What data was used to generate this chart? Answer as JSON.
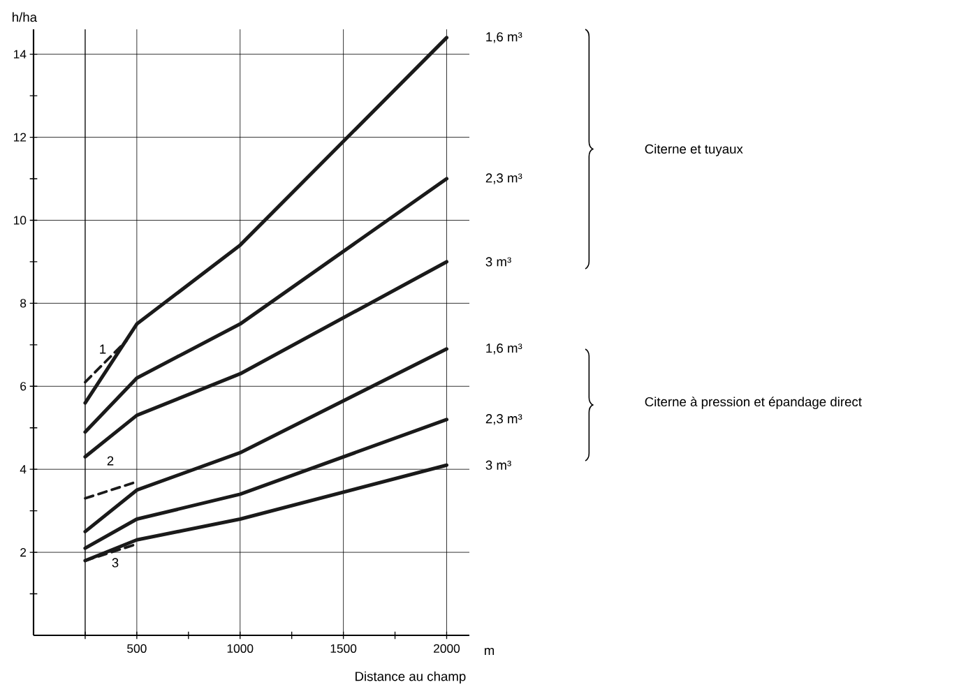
{
  "chart_data": {
    "type": "line",
    "xlabel": "Distance au champ",
    "ylabel": "h/ha",
    "xlim": [
      0,
      2110
    ],
    "ylim": [
      0,
      14.6
    ],
    "xticks": [
      {
        "value": 250,
        "label": null
      },
      500,
      {
        "value": 750,
        "label": null
      },
      1000,
      {
        "value": 1250,
        "label": null
      },
      1500,
      {
        "value": 1750,
        "label": null
      },
      2000
    ],
    "yticks": [
      {
        "value": 1,
        "label": null
      },
      2,
      {
        "value": 3,
        "label": null
      },
      4,
      {
        "value": 5,
        "label": null
      },
      6,
      {
        "value": 7,
        "label": null
      },
      8,
      {
        "value": 9,
        "label": null
      },
      10,
      {
        "value": 11,
        "label": null
      },
      12,
      {
        "value": 13,
        "label": null
      },
      14
    ],
    "grid": true,
    "ref_lines": [
      {
        "axis": "x",
        "value": 250
      }
    ],
    "series": [
      {
        "name": "1,6 m³",
        "color": "#1a1a1a",
        "x": [
          250,
          500,
          1000,
          2000
        ],
        "values": [
          5.6,
          7.5,
          9.4,
          14.4
        ]
      },
      {
        "name": "2,3 m³",
        "color": "#1a1a1a",
        "x": [
          250,
          500,
          1000,
          2000
        ],
        "values": [
          4.9,
          6.2,
          7.5,
          11.0
        ]
      },
      {
        "name": "3 m³",
        "color": "#1a1a1a",
        "x": [
          250,
          500,
          1000,
          2000
        ],
        "values": [
          4.3,
          5.3,
          6.3,
          9.0
        ]
      },
      {
        "name": "1,6 m³",
        "color": "#1a1a1a",
        "x": [
          250,
          500,
          1000,
          2000
        ],
        "values": [
          2.5,
          3.5,
          4.4,
          6.9
        ]
      },
      {
        "name": "2,3 m³",
        "color": "#1a1a1a",
        "x": [
          250,
          500,
          1000,
          2000
        ],
        "values": [
          2.1,
          2.8,
          3.4,
          5.2
        ]
      },
      {
        "name": "3 m³",
        "color": "#1a1a1a",
        "x": [
          250,
          500,
          1000,
          2000
        ],
        "values": [
          1.8,
          2.3,
          2.8,
          4.1
        ]
      },
      {
        "color": "#1a1a1a",
        "line_style": "dashed",
        "x": [
          250,
          450
        ],
        "values": [
          6.1,
          7.1
        ]
      },
      {
        "color": "#1a1a1a",
        "line_style": "dashed",
        "x": [
          250,
          500
        ],
        "values": [
          3.3,
          3.7
        ]
      },
      {
        "color": "#1a1a1a",
        "line_style": "dashed",
        "x": [
          250,
          500
        ],
        "values": [
          1.8,
          2.2
        ]
      }
    ],
    "annotations": [
      "m",
      "Citerne et tuyaux",
      "Citerne à pression et épandage direct",
      "1",
      "2",
      "3"
    ]
  }
}
